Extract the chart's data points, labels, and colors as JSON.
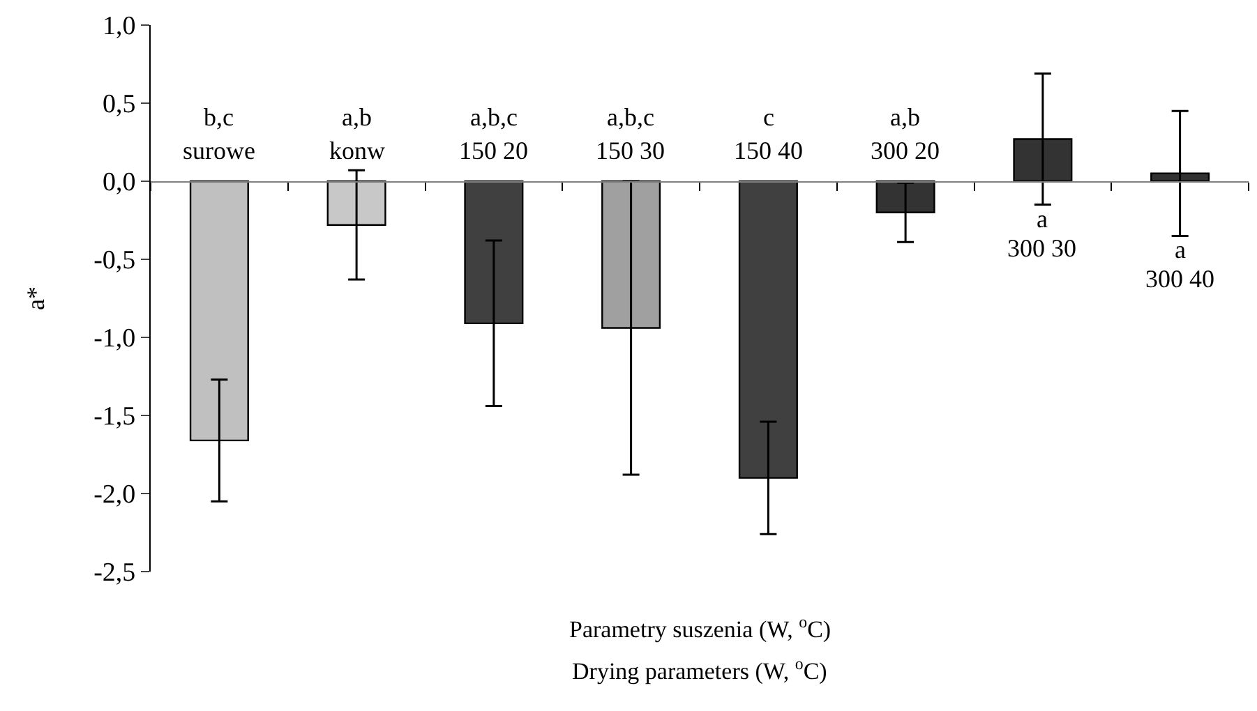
{
  "chart_data": {
    "type": "bar",
    "ylabel": "a*",
    "xlabel": "Parametry suszenia (W, $^{o}$C)",
    "annotations": [
      "Drying parameters (W, $^{o}$C)"
    ],
    "categories": [
      "surowe",
      "konw",
      "150 20",
      "150 30",
      "150 40",
      "300 20",
      "300 30",
      "300 40"
    ],
    "values": [
      -1.66,
      -0.28,
      -0.91,
      -0.94,
      -1.9,
      -0.2,
      0.27,
      0.05
    ],
    "errors": [
      0.39,
      0.35,
      0.53,
      0.94,
      0.36,
      0.19,
      0.42,
      0.4
    ],
    "value_labels": [
      "b,c",
      "a,b",
      "a,b,c",
      "a,b,c",
      "c",
      "a,b",
      "a",
      "a"
    ],
    "colors": [
      "#c0c0c0",
      "#c8c8c8",
      "#404040",
      "#a0a0a0",
      "#404040",
      "#333333",
      "#333333",
      "#333333"
    ],
    "ylim": [
      -2.5,
      1.0
    ],
    "yticks": [
      {
        "value": -2.5,
        "label": "-2,5"
      },
      {
        "value": -2.0,
        "label": "-2,0"
      },
      {
        "value": -1.5,
        "label": "-1,5"
      },
      {
        "value": -1.0,
        "label": "-1,0"
      },
      {
        "value": -0.5,
        "label": "-0,5"
      },
      {
        "value": 0,
        "label": "0,0"
      },
      {
        "value": 0.5,
        "label": "0,5"
      },
      {
        "value": 1.0,
        "label": "1,0"
      }
    ]
  }
}
